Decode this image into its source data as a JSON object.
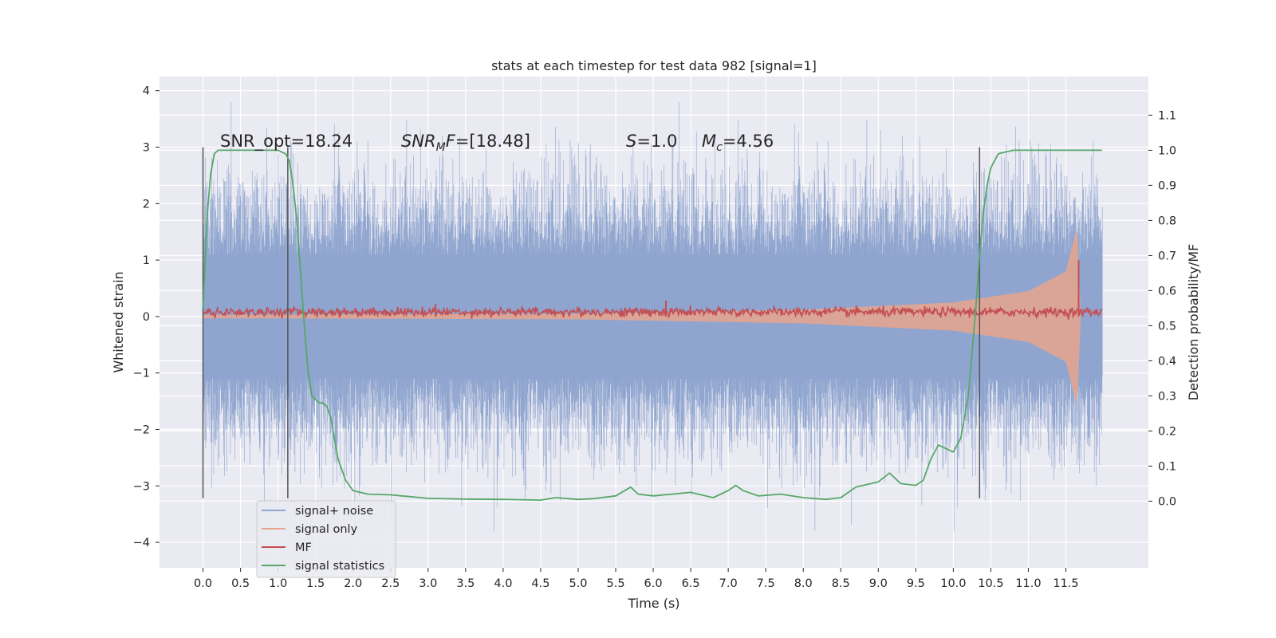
{
  "chart_data": {
    "type": "line",
    "title": "stats at each timestep for test data 982 [signal=1]",
    "xlabel": "Time (s)",
    "ylabel_left": "Whitened strain",
    "ylabel_right": "Detection probability/MF",
    "xlim": [
      -0.58,
      12.6
    ],
    "ylim_left": [
      -4.45,
      4.25
    ],
    "ylim_right": [
      -0.19,
      1.21
    ],
    "x_ticks": [
      0.0,
      0.5,
      1.0,
      1.5,
      2.0,
      2.5,
      3.0,
      3.5,
      4.0,
      4.5,
      5.0,
      5.5,
      6.0,
      6.5,
      7.0,
      7.5,
      8.0,
      8.5,
      9.0,
      9.5,
      10.0,
      10.5,
      11.0,
      11.5
    ],
    "x_tick_labels": [
      "0.0",
      "0.5",
      "1.0",
      "1.5",
      "2.0",
      "2.5",
      "3.0",
      "3.5",
      "4.0",
      "4.5",
      "5.0",
      "5.5",
      "6.0",
      "6.5",
      "7.0",
      "7.5",
      "8.0",
      "8.5",
      "9.0",
      "9.5",
      "10.0",
      "10.5",
      "11.0",
      "11.5"
    ],
    "y_left_ticks": [
      -4,
      -3,
      -2,
      -1,
      0,
      1,
      2,
      3,
      4
    ],
    "y_left_tick_labels": [
      "−4",
      "−3",
      "−2",
      "−1",
      "0",
      "1",
      "2",
      "3",
      "4"
    ],
    "y_right_ticks": [
      0.0,
      0.1,
      0.2,
      0.3,
      0.4,
      0.5,
      0.6,
      0.7,
      0.8,
      0.9,
      1.0,
      1.1
    ],
    "y_right_tick_labels": [
      "0.0",
      "0.1",
      "0.2",
      "0.3",
      "0.4",
      "0.5",
      "0.6",
      "0.7",
      "0.8",
      "0.9",
      "1.0",
      "1.1"
    ],
    "grid": true,
    "legend_position": "bottom-left",
    "annotations": {
      "snr_opt": "SNR_opt=18.24",
      "snr_mf_main": "SNR",
      "snr_mf_sub": "M",
      "snr_mf_rest": "F=[18.48]",
      "s_main": "S",
      "s_rest": "=1.0",
      "mc_main": "M",
      "mc_sub": "c",
      "mc_rest": "=4.56"
    },
    "vertical_markers_x": [
      0.0,
      1.13,
      10.35
    ],
    "series": [
      {
        "name": "signal+ noise",
        "color": "#8fa5cf",
        "axis": "left",
        "envelope_typical": 2.0,
        "envelope_extreme": 4.0,
        "core_band": [
          -1.1,
          1.1
        ],
        "x_range": [
          0.0,
          11.98
        ],
        "noisy": true
      },
      {
        "name": "signal only",
        "color": "#e8a58d",
        "axis": "left",
        "description_points": [
          [
            0.0,
            0.03
          ],
          [
            5.0,
            0.05
          ],
          [
            8.0,
            0.12
          ],
          [
            10.0,
            0.25
          ],
          [
            11.0,
            0.45
          ],
          [
            11.5,
            0.8
          ],
          [
            11.65,
            1.6
          ],
          [
            11.7,
            0.0
          ]
        ]
      },
      {
        "name": "MF",
        "color": "#c44e52",
        "axis": "left",
        "baseline": 0.08,
        "spikes": [
          [
            3.1,
            0.22
          ],
          [
            6.17,
            0.28
          ],
          [
            11.67,
            1.0
          ]
        ],
        "x_range": [
          0.0,
          11.98
        ]
      },
      {
        "name": "signal statistics",
        "color": "#55a868",
        "axis": "right",
        "x": [
          0.0,
          0.05,
          0.1,
          0.15,
          0.2,
          0.3,
          0.5,
          0.8,
          1.0,
          1.1,
          1.15,
          1.2,
          1.25,
          1.3,
          1.35,
          1.4,
          1.45,
          1.5,
          1.55,
          1.6,
          1.65,
          1.7,
          1.75,
          1.8,
          1.9,
          2.0,
          2.2,
          2.5,
          3.0,
          3.5,
          4.0,
          4.5,
          4.7,
          5.0,
          5.2,
          5.5,
          5.7,
          5.8,
          6.0,
          6.5,
          6.8,
          7.0,
          7.1,
          7.2,
          7.4,
          7.7,
          8.0,
          8.3,
          8.5,
          8.7,
          9.0,
          9.15,
          9.3,
          9.5,
          9.6,
          9.7,
          9.8,
          9.9,
          10.0,
          10.1,
          10.2,
          10.3,
          10.35,
          10.4,
          10.45,
          10.5,
          10.6,
          10.8,
          11.0,
          11.5,
          11.98
        ],
        "y": [
          0.55,
          0.8,
          0.93,
          0.99,
          1.0,
          1.0,
          1.0,
          1.0,
          1.0,
          0.99,
          0.97,
          0.9,
          0.8,
          0.65,
          0.5,
          0.37,
          0.3,
          0.29,
          0.28,
          0.28,
          0.27,
          0.24,
          0.18,
          0.12,
          0.06,
          0.03,
          0.02,
          0.018,
          0.008,
          0.006,
          0.005,
          0.003,
          0.01,
          0.005,
          0.007,
          0.015,
          0.04,
          0.02,
          0.015,
          0.025,
          0.01,
          0.03,
          0.045,
          0.03,
          0.015,
          0.02,
          0.01,
          0.005,
          0.01,
          0.04,
          0.055,
          0.08,
          0.05,
          0.045,
          0.06,
          0.12,
          0.16,
          0.15,
          0.14,
          0.18,
          0.3,
          0.55,
          0.7,
          0.82,
          0.9,
          0.95,
          0.99,
          1.0,
          1.0,
          1.0,
          1.0
        ]
      }
    ]
  }
}
